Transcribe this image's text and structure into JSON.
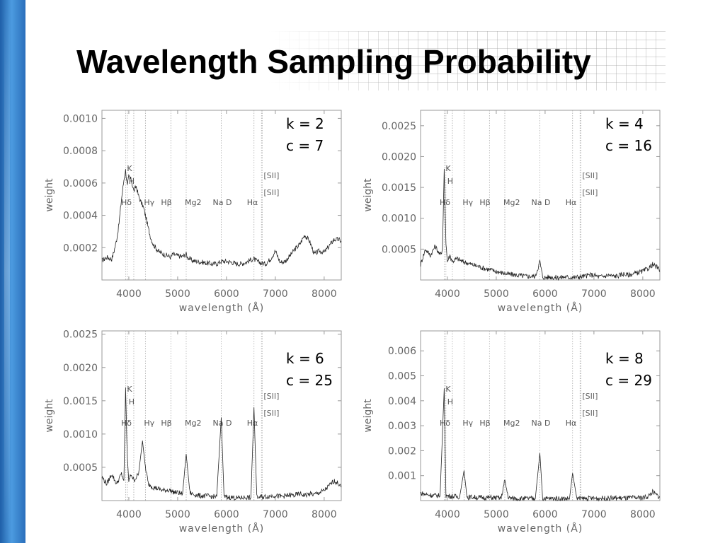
{
  "slide": {
    "title": "Wavelength Sampling Probability",
    "accent_bar_color": "#2f78c6"
  },
  "chart_data": [
    {
      "type": "line",
      "k_label": "k = 2",
      "c_label": "c = 7",
      "xlabel": "wavelength (Å)",
      "ylabel": "weight",
      "xlim": [
        3450,
        8350
      ],
      "ylim": [
        0.0,
        0.00105
      ],
      "xticks": [
        "4000",
        "5000",
        "6000",
        "7000",
        "8000"
      ],
      "yticks": [
        "0.0010",
        "0.0008",
        "0.0006",
        "0.0004",
        "0.0002"
      ],
      "ytick_values": [
        0.001,
        0.0008,
        0.0006,
        0.0004,
        0.0002
      ],
      "series": [
        {
          "x": [
            3450,
            3550,
            3650,
            3700,
            3750,
            3800,
            3850,
            3900,
            3934,
            3970,
            4000,
            4050,
            4102,
            4150,
            4200,
            4250,
            4300,
            4340,
            4400,
            4450,
            4500,
            4600,
            4700,
            4800,
            4861,
            4900,
            5000,
            5100,
            5175,
            5200,
            5300,
            5400,
            5500,
            5600,
            5700,
            5800,
            5893,
            6000,
            6100,
            6200,
            6300,
            6400,
            6500,
            6563,
            6600,
            6700,
            6800,
            6900,
            7000,
            7100,
            7200,
            7300,
            7400,
            7500,
            7600,
            7700,
            7800,
            7900,
            8000,
            8100,
            8200,
            8300,
            8350
          ],
          "y": [
            0.00012,
            0.00014,
            0.00013,
            0.00018,
            0.00025,
            0.00035,
            0.0005,
            0.00062,
            0.00068,
            0.00058,
            0.00064,
            0.00062,
            0.00055,
            0.00058,
            0.00052,
            0.00048,
            0.00045,
            0.0004,
            0.00032,
            0.00026,
            0.00022,
            0.00018,
            0.00016,
            0.00015,
            0.00014,
            0.00016,
            0.00015,
            0.000145,
            0.00016,
            0.00014,
            0.00012,
            0.000115,
            0.00011,
            0.000105,
            0.0001,
            0.0001,
            0.000115,
            0.000115,
            0.00011,
            0.0001,
            0.0001,
            0.00011,
            0.000125,
            0.00013,
            0.00012,
            0.000105,
            0.0001,
            0.00013,
            0.00018,
            0.00011,
            0.000115,
            0.00015,
            0.00019,
            0.00022,
            0.00028,
            0.00024,
            0.00016,
            0.00018,
            0.00017,
            0.00021,
            0.00025,
            0.00025,
            0.00024
          ]
        }
      ]
    },
    {
      "type": "line",
      "k_label": "k = 4",
      "c_label": "c = 16",
      "xlabel": "wavelength (Å)",
      "ylabel": "weight",
      "xlim": [
        3450,
        8350
      ],
      "ylim": [
        0.0,
        0.00275
      ],
      "xticks": [
        "4000",
        "5000",
        "6000",
        "7000",
        "8000"
      ],
      "yticks": [
        "0.0025",
        "0.0020",
        "0.0015",
        "0.0010",
        "0.0005"
      ],
      "ytick_values": [
        0.0025,
        0.002,
        0.0015,
        0.001,
        0.0005
      ],
      "series": [
        {
          "x": [
            3450,
            3550,
            3650,
            3750,
            3850,
            3900,
            3934,
            3970,
            4000,
            4050,
            4102,
            4200,
            4300,
            4400,
            4500,
            4600,
            4700,
            4800,
            4861,
            4900,
            5000,
            5100,
            5200,
            5300,
            5400,
            5500,
            5600,
            5700,
            5800,
            5893,
            5950,
            6000,
            6100,
            6200,
            6300,
            6400,
            6500,
            6563,
            6600,
            6700,
            6800,
            6900,
            7000,
            7100,
            7200,
            7300,
            7400,
            7500,
            7600,
            7700,
            7800,
            7900,
            8000,
            8100,
            8200,
            8300,
            8350
          ],
          "y": [
            0.00025,
            0.0005,
            0.0004,
            0.00055,
            0.0004,
            0.0005,
            0.0018,
            0.0006,
            0.0003,
            0.0004,
            0.0003,
            0.00035,
            0.0003,
            0.00028,
            0.00025,
            0.00023,
            0.0002,
            0.00018,
            0.00017,
            0.00016,
            0.00014,
            0.00012,
            0.0001,
            9e-05,
            8e-05,
            7e-05,
            6e-05,
            6e-05,
            6e-05,
            0.0003,
            5e-05,
            4e-05,
            5e-05,
            4e-05,
            4e-05,
            5e-05,
            4e-05,
            5e-05,
            4e-05,
            5e-05,
            6e-05,
            8e-05,
            8e-05,
            5e-05,
            6e-05,
            8e-05,
            6e-05,
            7e-05,
            0.0001,
            8e-05,
            0.0001,
            0.00012,
            0.00014,
            0.00018,
            0.00025,
            0.0002,
            0.00015
          ]
        }
      ]
    },
    {
      "type": "line",
      "k_label": "k = 6",
      "c_label": "c = 25",
      "xlabel": "wavelength (Å)",
      "ylabel": "weight",
      "xlim": [
        3450,
        8350
      ],
      "ylim": [
        0.0,
        0.00255
      ],
      "xticks": [
        "4000",
        "5000",
        "6000",
        "7000",
        "8000"
      ],
      "yticks": [
        "0.0025",
        "0.0020",
        "0.0015",
        "0.0010",
        "0.0005"
      ],
      "ytick_values": [
        0.0025,
        0.002,
        0.0015,
        0.001,
        0.0005
      ],
      "series": [
        {
          "x": [
            3450,
            3550,
            3650,
            3750,
            3850,
            3900,
            3934,
            3970,
            4000,
            4050,
            4102,
            4200,
            4280,
            4340,
            4400,
            4500,
            4600,
            4700,
            4800,
            4861,
            4900,
            5000,
            5100,
            5175,
            5250,
            5300,
            5400,
            5500,
            5600,
            5700,
            5800,
            5893,
            5950,
            6000,
            6100,
            6200,
            6300,
            6400,
            6500,
            6563,
            6620,
            6700,
            6800,
            6900,
            7000,
            7100,
            7200,
            7300,
            7400,
            7500,
            7600,
            7700,
            7800,
            7900,
            8000,
            8100,
            8200,
            8300,
            8350
          ],
          "y": [
            0.00035,
            0.00025,
            0.0004,
            0.00025,
            0.0004,
            0.0003,
            0.0017,
            0.0006,
            0.0003,
            0.0004,
            0.0003,
            0.0004,
            0.0009,
            0.0005,
            0.00025,
            0.0002,
            0.00018,
            0.00015,
            0.00016,
            0.00015,
            0.00013,
            0.00012,
            0.0001,
            0.0007,
            0.00012,
            0.0001,
            8e-05,
            7e-05,
            7e-05,
            6e-05,
            6e-05,
            0.00125,
            6e-05,
            5e-05,
            5e-05,
            4e-05,
            4e-05,
            5e-05,
            4e-05,
            0.0014,
            5e-05,
            5e-05,
            6e-05,
            7e-05,
            8e-05,
            6e-05,
            7e-05,
            8e-05,
            8e-05,
            0.0001,
            8e-05,
            0.0001,
            9e-05,
            0.00012,
            0.00015,
            0.00022,
            0.0003,
            0.00025,
            0.0002
          ]
        }
      ]
    },
    {
      "type": "line",
      "k_label": "k = 8",
      "c_label": "c = 29",
      "xlabel": "wavelength (Å)",
      "ylabel": "weight",
      "xlim": [
        3450,
        8350
      ],
      "ylim": [
        0.0,
        0.0068
      ],
      "xticks": [
        "4000",
        "5000",
        "6000",
        "7000",
        "8000"
      ],
      "yticks": [
        "0.006",
        "0.005",
        "0.004",
        "0.003",
        "0.002",
        "0.001"
      ],
      "ytick_values": [
        0.006,
        0.005,
        0.004,
        0.003,
        0.002,
        0.001
      ],
      "series": [
        {
          "x": [
            3450,
            3550,
            3650,
            3750,
            3850,
            3934,
            3970,
            4050,
            4150,
            4250,
            4340,
            4400,
            4500,
            4600,
            4700,
            4800,
            4900,
            5000,
            5100,
            5175,
            5250,
            5400,
            5500,
            5600,
            5700,
            5800,
            5893,
            5950,
            6050,
            6200,
            6350,
            6500,
            6563,
            6650,
            6800,
            6950,
            7100,
            7250,
            7400,
            7550,
            7700,
            7850,
            8000,
            8100,
            8200,
            8300,
            8350
          ],
          "y": [
            0.0003,
            0.00025,
            0.00022,
            0.0002,
            0.0002,
            0.0045,
            0.0002,
            0.00018,
            0.00016,
            0.00015,
            0.0012,
            0.00014,
            0.00014,
            0.00013,
            0.00012,
            0.00012,
            0.00012,
            0.00011,
            0.0001,
            0.0008,
            0.0001,
            9e-05,
            8e-05,
            8e-05,
            8e-05,
            8e-05,
            0.0019,
            8e-05,
            8e-05,
            8e-05,
            8e-05,
            8e-05,
            0.0011,
            8e-05,
            8e-05,
            9e-05,
            9e-05,
            9e-05,
            0.0001,
            0.0001,
            0.0001,
            0.00011,
            0.00012,
            0.00016,
            0.00035,
            0.0002,
            0.00015
          ]
        }
      ]
    }
  ],
  "spectral_lines": [
    {
      "label": "K",
      "wavelength": 3934
    },
    {
      "label": "H",
      "wavelength": 3969
    },
    {
      "label": "Hδ",
      "wavelength": 4102
    },
    {
      "label": "Hγ",
      "wavelength": 4340
    },
    {
      "label": "Hβ",
      "wavelength": 4861
    },
    {
      "label": "Mg2",
      "wavelength": 5175
    },
    {
      "label": "Na D",
      "wavelength": 5893
    },
    {
      "label": "Hα",
      "wavelength": 6563
    },
    {
      "label": "[SII]",
      "wavelength": 6716
    },
    {
      "label": "[SII]",
      "wavelength": 6731
    }
  ]
}
